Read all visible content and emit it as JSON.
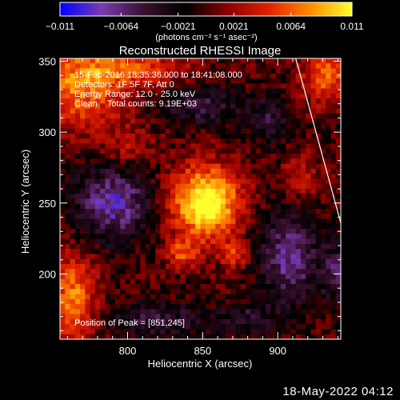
{
  "chart_data": {
    "type": "heatmap",
    "title": "Reconstructed RHESSI Image",
    "xlabel": "Heliocentric X (arcsec)",
    "ylabel": "Heliocentric Y (arcsec)",
    "xlim": [
      755,
      942
    ],
    "ylim": [
      154,
      352
    ],
    "x_ticks": [
      800,
      850,
      900
    ],
    "y_ticks": [
      200,
      250,
      300,
      350
    ],
    "colorbar": {
      "range": [
        -0.011,
        0.011
      ],
      "tick_values": [
        -0.011,
        -0.0064,
        -0.0021,
        0.0021,
        0.0064,
        0.011
      ],
      "tick_labels": [
        "−0.011",
        "−0.0064",
        "−0.0021",
        "0.0021",
        "0.0064",
        "0.011"
      ],
      "unit_label": "(photons cm⁻² s⁻¹ asec⁻²)",
      "colors": [
        "#0000ff",
        "#7a3cb0",
        "#3a1030",
        "#000000",
        "#8a0000",
        "#e02000",
        "#ff8c00",
        "#ffff30"
      ]
    },
    "annotations": [
      "15-Feb-2016 18:35:36.000 to 18:41:08.000",
      "Detectors: 1F 5F 7F, Att 0",
      "Energy Range: 12.0 - 25.0 keV",
      "Clean    Total counts: 9.19E+03"
    ],
    "peak_label": "Position of Peak = [851,245]",
    "peak": [
      851,
      245
    ],
    "limb_line": [
      [
        912,
        352
      ],
      [
        942,
        236
      ]
    ],
    "source_components": [
      {
        "name": "main-source",
        "x": 852,
        "y": 250,
        "sx": 16,
        "sy": 18,
        "amp": 0.0125
      },
      {
        "name": "lower-left-lobe",
        "x": 836,
        "y": 214,
        "sx": 7,
        "sy": 7,
        "amp": 0.0055
      },
      {
        "name": "lower-right-lobe",
        "x": 871,
        "y": 213,
        "sx": 6,
        "sy": 6,
        "amp": 0.005
      },
      {
        "name": "top-left-region",
        "x": 768,
        "y": 332,
        "sx": 22,
        "sy": 20,
        "amp": 0.0072
      },
      {
        "name": "top-band",
        "x": 805,
        "y": 345,
        "sx": 25,
        "sy": 8,
        "amp": 0.005
      },
      {
        "name": "top-right-region",
        "x": 932,
        "y": 340,
        "sx": 11,
        "sy": 14,
        "amp": 0.0065
      },
      {
        "name": "bottom-left-region",
        "x": 764,
        "y": 182,
        "sx": 10,
        "sy": 22,
        "amp": 0.0075
      },
      {
        "name": "left-arm",
        "x": 800,
        "y": 290,
        "sx": 12,
        "sy": 10,
        "amp": 0.003
      },
      {
        "name": "right-mid-region",
        "x": 915,
        "y": 268,
        "sx": 10,
        "sy": 12,
        "amp": 0.003
      },
      {
        "name": "negative-left",
        "x": 790,
        "y": 250,
        "sx": 18,
        "sy": 18,
        "amp": -0.0078
      },
      {
        "name": "negative-right-center",
        "x": 908,
        "y": 212,
        "sx": 14,
        "sy": 22,
        "amp": -0.0072
      },
      {
        "name": "negative-upper",
        "x": 850,
        "y": 318,
        "sx": 20,
        "sy": 9,
        "amp": -0.0048
      },
      {
        "name": "negative-bottom",
        "x": 820,
        "y": 168,
        "sx": 22,
        "sy": 9,
        "amp": -0.0046
      },
      {
        "name": "negative-top-right",
        "x": 895,
        "y": 308,
        "sx": 9,
        "sy": 12,
        "amp": -0.0042
      },
      {
        "name": "negative-far-right",
        "x": 938,
        "y": 200,
        "sx": 6,
        "sy": 14,
        "amp": -0.0052
      },
      {
        "name": "negative-bottom-right",
        "x": 880,
        "y": 168,
        "sx": 14,
        "sy": 8,
        "amp": -0.004
      }
    ]
  },
  "footer": {
    "date_stamp": "18-May-2022 04:12"
  }
}
